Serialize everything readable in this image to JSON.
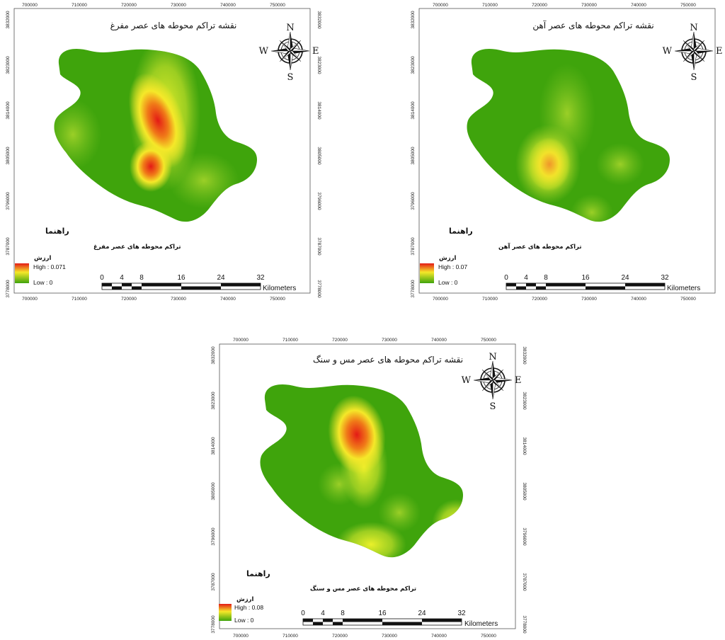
{
  "maps": [
    {
      "id": "left",
      "title": "نقشه تراکم محوطه های عصر مفرغ",
      "legend": {
        "heading": "راهنما",
        "layer": "تراکم محوطه های عصر مفرغ",
        "field": "ارزش",
        "high": "High : 0.071",
        "low": "Low : 0"
      },
      "x_ticks": [
        "700000",
        "710000",
        "720000",
        "730000",
        "740000",
        "750000"
      ],
      "y_ticks": [
        "3832000",
        "3823000",
        "3814000",
        "3805000",
        "3796000",
        "3787000",
        "3778000"
      ],
      "scale": {
        "labels": [
          "0",
          "4",
          "8",
          "16",
          "24",
          "32"
        ],
        "unit": "Kilometers"
      },
      "compass": {
        "n": "N",
        "s": "S",
        "e": "E",
        "w": "W"
      },
      "hotspots_note": "red centers: north-central ridge, east edge, south edge"
    },
    {
      "id": "right",
      "title": "نقشه تراکم محوطه های عصر آهن",
      "legend": {
        "heading": "راهنما",
        "layer": "تراکم محوطه های عصر آهن",
        "field": "ارزش",
        "high": "High : 0.07",
        "low": "Low : 0"
      },
      "x_ticks": [
        "700000",
        "710000",
        "720000",
        "730000",
        "740000",
        "750000"
      ],
      "y_ticks": [
        "3832000",
        "3823000",
        "3814000",
        "3805000",
        "3796000",
        "3787000",
        "3778000"
      ],
      "scale": {
        "labels": [
          "0",
          "4",
          "8",
          "16",
          "24",
          "32"
        ],
        "unit": "Kilometers"
      },
      "compass": {
        "n": "N",
        "s": "S",
        "e": "E",
        "w": "W"
      }
    },
    {
      "id": "bottom",
      "title": "نقشه تراکم محوطه های عصر مس و سنگ",
      "legend": {
        "heading": "راهنما",
        "layer": "تراکم محوطه های عصر مس و سنگ",
        "field": "ارزش",
        "high": "High : 0.08",
        "low": "Low : 0"
      },
      "x_ticks": [
        "700000",
        "710000",
        "720000",
        "730000",
        "740000",
        "750000"
      ],
      "y_ticks": [
        "3832000",
        "3823000",
        "3814000",
        "3805000",
        "3796000",
        "3787000",
        "3778000"
      ],
      "scale": {
        "labels": [
          "0",
          "4",
          "8",
          "16",
          "24",
          "32"
        ],
        "unit": "Kilometers"
      },
      "compass": {
        "n": "N",
        "s": "S",
        "e": "E",
        "w": "W"
      }
    }
  ],
  "colors": {
    "low": "#3fa40c",
    "mid": "#f2ec24",
    "high": "#e8201a",
    "frame": "#555555"
  }
}
